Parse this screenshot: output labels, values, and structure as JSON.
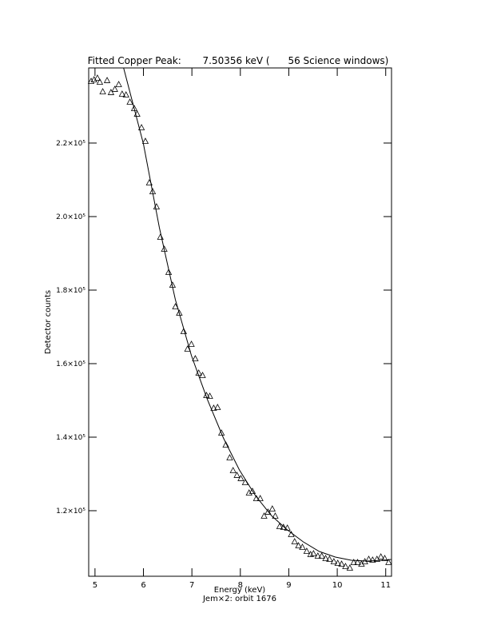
{
  "chart_data": {
    "type": "scatter",
    "title": "Fitted Copper Peak:       7.50356 keV (      56 Science windows)",
    "xlabel": "Energy (keV)",
    "subtitle": "Jem×2: orbit 1676",
    "ylabel": "Detector counts",
    "xlim": [
      4.87,
      11.12
    ],
    "ylim": [
      102170,
      240430
    ],
    "xticks": [
      5,
      6,
      7,
      8,
      9,
      10,
      11
    ],
    "yticks": [
      {
        "value": 120000,
        "label": "1.2×10⁵"
      },
      {
        "value": 140000,
        "label": "1.4×10⁵"
      },
      {
        "value": 160000,
        "label": "1.6×10⁵"
      },
      {
        "value": 180000,
        "label": "1.8×10⁵"
      },
      {
        "value": 200000,
        "label": "2.0×10⁵"
      },
      {
        "value": 220000,
        "label": "2.2×10⁵"
      }
    ],
    "color": "#000000",
    "series": [
      {
        "style": "markers",
        "marker": "triangle",
        "x": [
          4.92,
          4.98,
          5.05,
          5.1,
          5.16,
          5.25,
          5.33,
          5.41,
          5.49,
          5.56,
          5.64,
          5.72,
          5.81,
          5.87,
          5.96,
          6.04,
          6.12,
          6.19,
          6.27,
          6.35,
          6.43,
          6.52,
          6.6,
          6.66,
          6.74,
          6.83,
          6.91,
          6.99,
          7.07,
          7.14,
          7.22,
          7.3,
          7.37,
          7.45,
          7.53,
          7.61,
          7.7,
          7.78,
          7.85,
          7.93,
          8.01,
          8.1,
          8.18,
          8.25,
          8.33,
          8.41,
          8.49,
          8.57,
          8.66,
          8.72,
          8.81,
          8.89,
          8.97,
          9.05,
          9.12,
          9.2,
          9.28,
          9.37,
          9.45,
          9.51,
          9.6,
          9.68,
          9.76,
          9.84,
          9.93,
          10.01,
          10.09,
          10.17,
          10.26,
          10.34,
          10.42,
          10.5,
          10.57,
          10.65,
          10.73,
          10.82,
          10.9,
          10.98,
          11.06
        ],
        "values": [
          236740,
          237170,
          237610,
          236520,
          233910,
          236960,
          233700,
          234570,
          235870,
          233260,
          233040,
          231090,
          229350,
          227830,
          224130,
          220430,
          209130,
          206740,
          202610,
          194350,
          191090,
          184780,
          181300,
          175430,
          173690,
          168690,
          163910,
          165220,
          161300,
          157390,
          156740,
          151300,
          151090,
          147830,
          148040,
          141090,
          137830,
          134350,
          130870,
          129570,
          128700,
          127610,
          124780,
          125220,
          123260,
          123260,
          118480,
          119570,
          120430,
          118480,
          115650,
          115430,
          115220,
          113480,
          111520,
          110430,
          110000,
          108910,
          108040,
          108260,
          107610,
          107610,
          106960,
          106740,
          106090,
          105650,
          105430,
          104780,
          104350,
          105870,
          105870,
          105430,
          106090,
          106740,
          106520,
          106740,
          107390,
          106960,
          105870
        ]
      },
      {
        "style": "line",
        "x": [
          5.59,
          6.0,
          6.33,
          6.66,
          6.99,
          7.32,
          7.65,
          7.98,
          8.31,
          8.64,
          8.97,
          9.3,
          9.63,
          9.96,
          10.29,
          10.62,
          10.95,
          11.11
        ],
        "values": [
          240430,
          219780,
          196960,
          177390,
          162170,
          150220,
          139780,
          131090,
          124130,
          118700,
          114780,
          111520,
          108910,
          107390,
          106520,
          106300,
          106520,
          106740
        ]
      }
    ]
  }
}
